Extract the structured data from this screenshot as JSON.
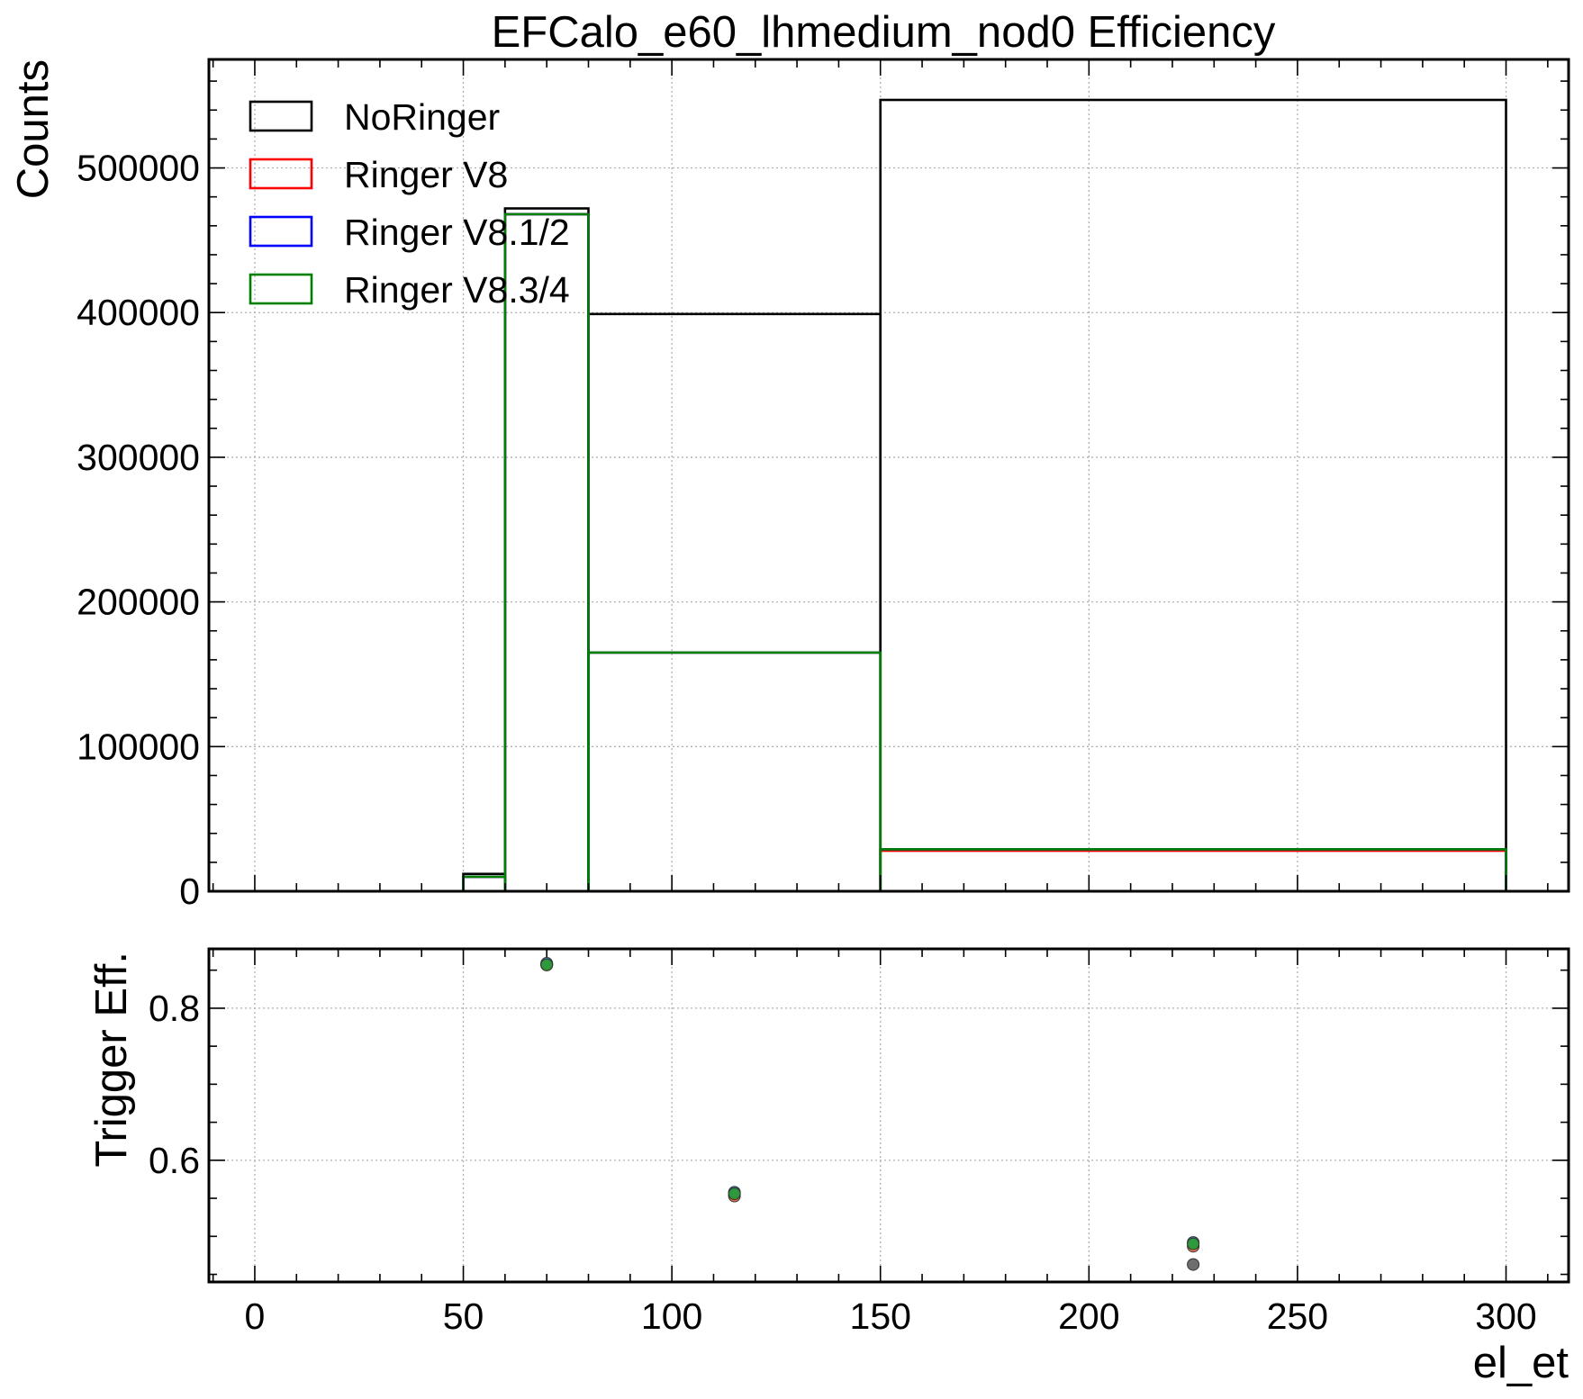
{
  "chart_data": [
    {
      "type": "histogram",
      "title": "EFCalo_e60_lhmedium_nod0 Efficiency",
      "ylabel": "Counts",
      "xlim": [
        -11,
        315
      ],
      "ylim": [
        0,
        575000
      ],
      "yticks": [
        0,
        100000,
        200000,
        300000,
        400000,
        500000
      ],
      "ytick_labels": [
        "0",
        "100000",
        "200000",
        "300000",
        "400000",
        "500000"
      ],
      "grid": true,
      "legend": "upper-left",
      "bin_edges": [
        50,
        60,
        80,
        150,
        300
      ],
      "series": [
        {
          "name": "NoRinger",
          "color": "#000000",
          "values": [
            12000,
            472000,
            399000,
            547000
          ]
        },
        {
          "name": "Ringer V8",
          "color": "#ff0000",
          "values": [
            10000,
            468000,
            165000,
            28000
          ]
        },
        {
          "name": "Ringer V8.1/2",
          "color": "#0000ff",
          "values": [
            10000,
            468000,
            165000,
            29000
          ]
        },
        {
          "name": "Ringer V8.3/4",
          "color": "#008000",
          "values": [
            10000,
            468000,
            165000,
            29000
          ]
        }
      ]
    },
    {
      "type": "scatter",
      "ylabel": "Trigger Eff.",
      "xlabel": "el_et",
      "xlim": [
        -11,
        315
      ],
      "ylim": [
        0.44,
        0.878
      ],
      "xticks": [
        0,
        50,
        100,
        150,
        200,
        250,
        300
      ],
      "xtick_labels": [
        "0",
        "50",
        "100",
        "150",
        "200",
        "250",
        "300"
      ],
      "yticks": [
        0.6,
        0.8
      ],
      "ytick_labels": [
        "0.6",
        "0.8"
      ],
      "grid": true,
      "series": [
        {
          "color": "#555555",
          "x": [
            70,
            115,
            225
          ],
          "y": [
            0.857,
            0.555,
            0.463
          ]
        },
        {
          "color": "#ff6a3d",
          "x": [
            70,
            115,
            225
          ],
          "y": [
            0.857,
            0.553,
            0.487
          ]
        },
        {
          "color": "#1f77b4",
          "x": [
            70,
            115,
            225
          ],
          "y": [
            0.859,
            0.558,
            0.492
          ]
        },
        {
          "color": "#2ca02c",
          "x": [
            70,
            115,
            225
          ],
          "y": [
            0.857,
            0.556,
            0.49
          ]
        }
      ]
    }
  ]
}
